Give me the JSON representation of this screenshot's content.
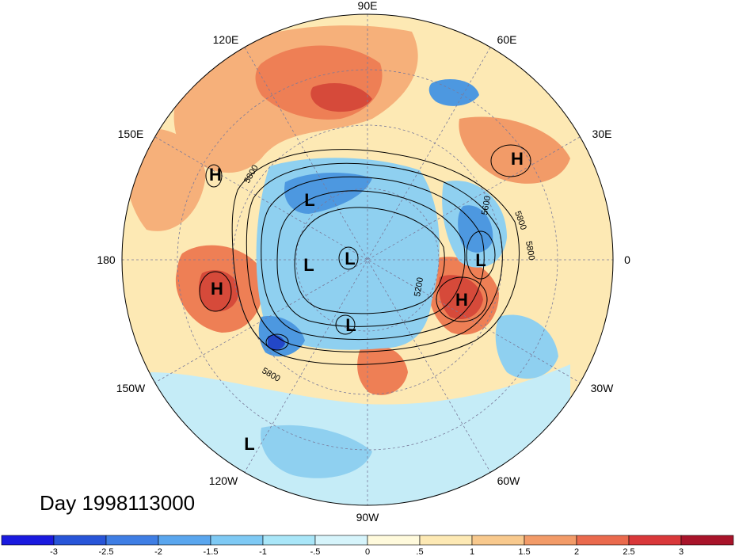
{
  "map": {
    "projection": "north-polar-stereographic",
    "colors": {
      "background_field": "#fde9b4",
      "warm_1": "#f6b07a",
      "warm_2": "#ee7f55",
      "warm_3": "#d64a3a",
      "cool_1": "#c5ecf7",
      "cool_2": "#8fd0f0",
      "cool_3": "#4d98e0",
      "cool_4": "#2347c8",
      "grid": "#7a7a9a",
      "contour": "#000000"
    },
    "longitude_labels": [
      "90E",
      "60E",
      "30E",
      "0",
      "30W",
      "60W",
      "90W",
      "120W",
      "150W",
      "180",
      "150E",
      "120E"
    ],
    "systems": [
      "H",
      "H",
      "H",
      "H",
      "L",
      "L",
      "L",
      "L",
      "L",
      "L"
    ],
    "contour_labels": [
      "5800",
      "5800",
      "5800",
      "5600",
      "5200",
      "5800"
    ]
  },
  "title": {
    "text": "Day 1998113000"
  },
  "colorbar": {
    "ticks": [
      "-3",
      "-2.5",
      "-2",
      "-1.5",
      "-1",
      "-.5",
      "0",
      ".5",
      "1",
      "1.5",
      "2",
      "2.5",
      "3"
    ],
    "colors": [
      "#1a1adf",
      "#2855d8",
      "#3f7ee4",
      "#5aa6ee",
      "#7ec9f4",
      "#a9e6f8",
      "#d6f4fb",
      "#fffadc",
      "#fde9b4",
      "#f8c98d",
      "#f29b68",
      "#ea6a4d",
      "#d9383a",
      "#a8142a"
    ]
  }
}
